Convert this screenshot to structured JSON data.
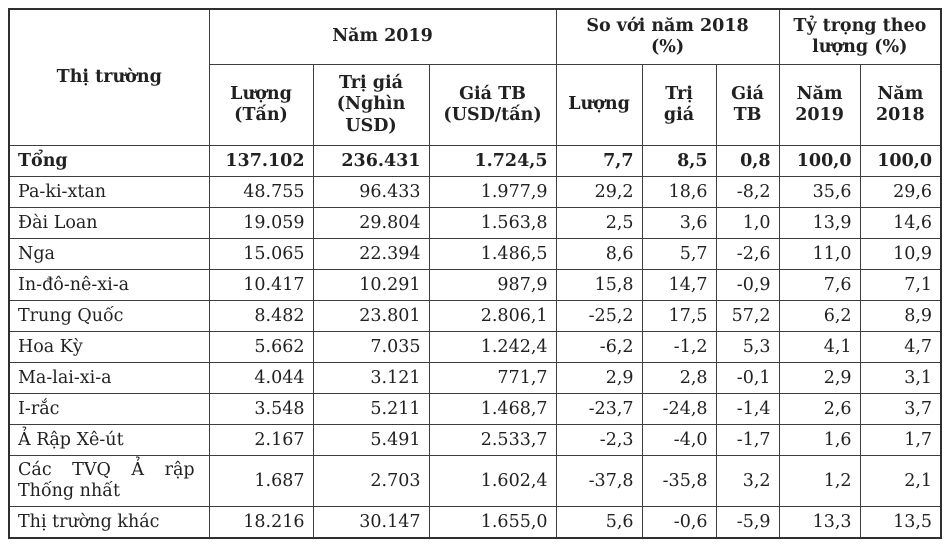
{
  "table": {
    "corner_header": "Thị trường",
    "group_headers": [
      "Năm 2019",
      "So với năm 2018\n(%)",
      "Tỷ trọng theo\nlượng (%)"
    ],
    "sub_headers": [
      "Lượng\n(Tấn)",
      "Trị giá\n(Nghìn\nUSD)",
      "Giá TB\n(USD/tấn)",
      "Lượng",
      "Trị\ngiá",
      "Giá\nTB",
      "Năm\n2019",
      "Năm\n2018"
    ],
    "rows": [
      {
        "label": "Tổng",
        "bold": true,
        "values": [
          "137.102",
          "236.431",
          "1.724,5",
          "7,7",
          "8,5",
          "0,8",
          "100,0",
          "100,0"
        ]
      },
      {
        "label": "Pa-ki-xtan",
        "values": [
          "48.755",
          "96.433",
          "1.977,9",
          "29,2",
          "18,6",
          "-8,2",
          "35,6",
          "29,6"
        ]
      },
      {
        "label": "Đài Loan",
        "values": [
          "19.059",
          "29.804",
          "1.563,8",
          "2,5",
          "3,6",
          "1,0",
          "13,9",
          "14,6"
        ]
      },
      {
        "label": "Nga",
        "values": [
          "15.065",
          "22.394",
          "1.486,5",
          "8,6",
          "5,7",
          "-2,6",
          "11,0",
          "10,9"
        ]
      },
      {
        "label": "In-đô-nê-xi-a",
        "values": [
          "10.417",
          "10.291",
          "987,9",
          "15,8",
          "14,7",
          "-0,9",
          "7,6",
          "7,1"
        ]
      },
      {
        "label": "Trung Quốc",
        "values": [
          "8.482",
          "23.801",
          "2.806,1",
          "-25,2",
          "17,5",
          "57,2",
          "6,2",
          "8,9"
        ]
      },
      {
        "label": "Hoa Kỳ",
        "values": [
          "5.662",
          "7.035",
          "1.242,4",
          "-6,2",
          "-1,2",
          "5,3",
          "4,1",
          "4,7"
        ]
      },
      {
        "label": "Ma-lai-xi-a",
        "values": [
          "4.044",
          "3.121",
          "771,7",
          "2,9",
          "2,8",
          "-0,1",
          "2,9",
          "3,1"
        ]
      },
      {
        "label": "I-rắc",
        "values": [
          "3.548",
          "5.211",
          "1.468,7",
          "-23,7",
          "-24,8",
          "-1,4",
          "2,6",
          "3,7"
        ]
      },
      {
        "label": "Ả Rập Xê-út",
        "values": [
          "2.167",
          "5.491",
          "2.533,7",
          "-2,3",
          "-4,0",
          "-1,7",
          "1,6",
          "1,7"
        ]
      },
      {
        "label": "Các TVQ Ả rập\nThống nhất",
        "two_line_label": true,
        "values": [
          "1.687",
          "2.703",
          "1.602,4",
          "-37,8",
          "-35,8",
          "3,2",
          "1,2",
          "2,1"
        ]
      },
      {
        "label": "Thị trường khác",
        "values": [
          "18.216",
          "30.147",
          "1.655,0",
          "5,6",
          "-0,6",
          "-5,9",
          "13,3",
          "13,5"
        ]
      }
    ]
  }
}
